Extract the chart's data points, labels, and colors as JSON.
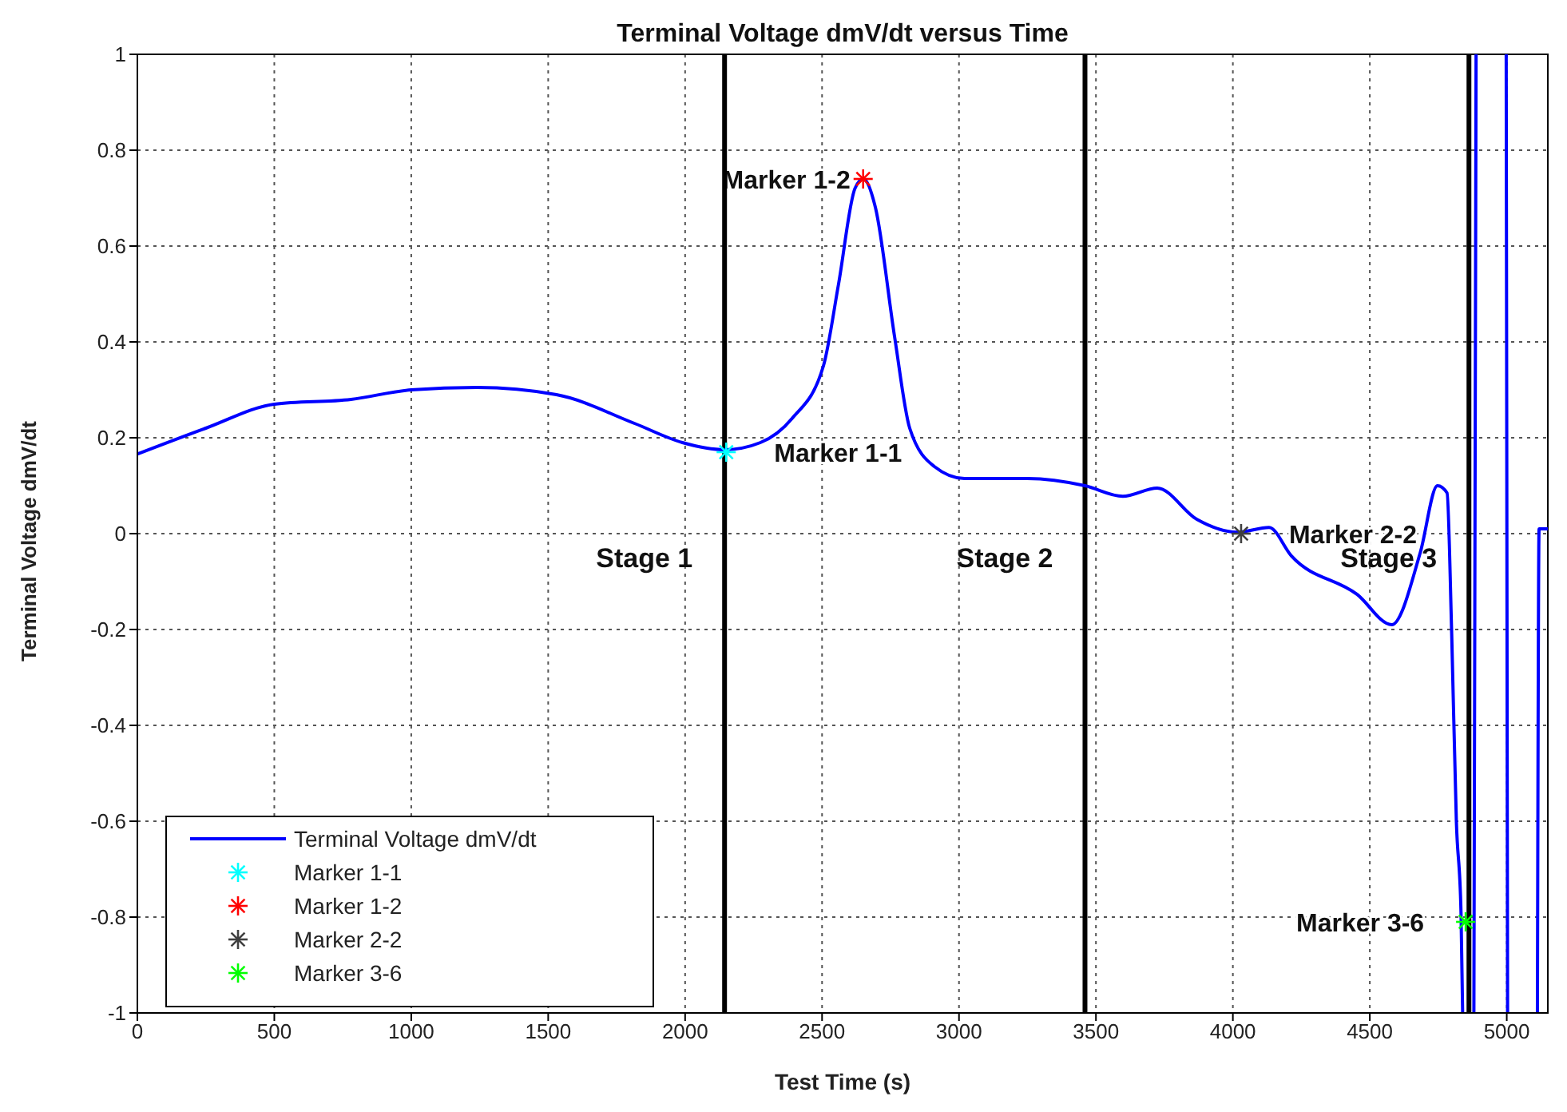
{
  "chart_data": {
    "type": "line",
    "title": "Terminal Voltage dmV/dt versus Time",
    "xlabel": "Test Time (s)",
    "ylabel": "Terminal Voltage dmV/dt",
    "xlim": [
      0,
      5150
    ],
    "xticks": [
      0,
      500,
      1000,
      1500,
      2000,
      2500,
      3000,
      3500,
      4000,
      4500,
      5000
    ],
    "ylim": [
      -1,
      1
    ],
    "yticks": [
      -1,
      -0.8,
      -0.6,
      -0.4,
      -0.2,
      0,
      0.2,
      0.4,
      0.6,
      0.8,
      1
    ],
    "grid": true,
    "legend": "bottom left",
    "line_style": "solid",
    "series": [
      {
        "name": "Terminal Voltage dmV/dt",
        "color": "#0000ff",
        "marker": "none",
        "x": [
          0,
          250,
          500,
          780,
          1000,
          1240,
          1530,
          1815,
          1990,
          2144,
          2275,
          2390,
          2505,
          2560,
          2620,
          2650,
          2695,
          2765,
          2820,
          2910,
          3020,
          3250,
          3460,
          3598,
          3724,
          3868,
          4017,
          4132,
          4213,
          4454,
          4580,
          4684,
          4747,
          4782,
          4799,
          4816,
          4833,
          4839,
          4850,
          4880,
          4888,
          4940,
          4998,
          5003,
          5050,
          5112,
          5118,
          5150
        ],
        "values": [
          0.166,
          0.22,
          0.27,
          0.28,
          0.3,
          0.305,
          0.29,
          0.23,
          0.19,
          0.175,
          0.19,
          0.24,
          0.35,
          0.52,
          0.72,
          0.74,
          0.68,
          0.41,
          0.22,
          0.14,
          0.115,
          0.115,
          0.1,
          0.078,
          0.095,
          0.03,
          0.003,
          0.013,
          -0.046,
          -0.127,
          -0.19,
          -0.04,
          0.1,
          0.085,
          -0.21,
          -0.6,
          -0.79,
          -1,
          null,
          -1,
          1,
          null,
          1,
          -1,
          null,
          -1,
          0.01,
          0.01
        ]
      },
      {
        "name": "Marker 1-1",
        "type": "scatter",
        "color": "#00ffff",
        "marker": "cross",
        "x": [
          2150
        ],
        "values": [
          0.17
        ]
      },
      {
        "name": "Marker 1-2",
        "type": "scatter",
        "color": "#ff0000",
        "marker": "cross",
        "x": [
          2650
        ],
        "values": [
          0.74
        ]
      },
      {
        "name": "Marker 2-2",
        "type": "scatter",
        "color": "#404040",
        "marker": "cross",
        "x": [
          4030
        ],
        "values": [
          0
        ]
      },
      {
        "name": "Marker 3-6",
        "type": "scatter",
        "color": "#00ff00",
        "marker": "cross",
        "x": [
          4850
        ],
        "values": [
          -0.81
        ]
      }
    ],
    "ref_lines": [
      {
        "axis": "x",
        "value": 2144,
        "color": "#000000",
        "label": "Stage 1"
      },
      {
        "axis": "x",
        "value": 3460,
        "color": "#000000",
        "label": "Stage 2"
      },
      {
        "axis": "x",
        "value": 4862,
        "color": "#000000",
        "label": "Stage 3"
      }
    ],
    "annotations": [
      {
        "text": "Marker 1-1",
        "x": 2150,
        "y": 0.17
      },
      {
        "text": "Marker 1-2",
        "x": 2650,
        "y": 0.74
      },
      {
        "text": "Marker 2-2",
        "x": 4030,
        "y": 0
      },
      {
        "text": "Marker 3-6",
        "x": 4850,
        "y": -0.81
      }
    ]
  }
}
